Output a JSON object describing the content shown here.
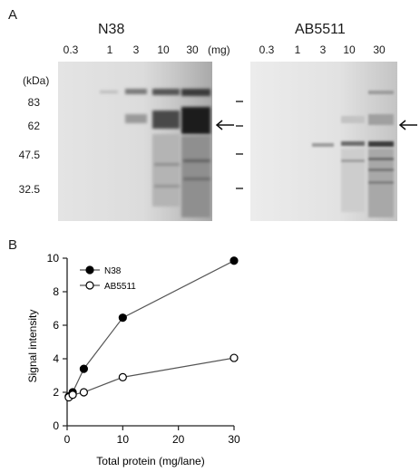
{
  "panel_a": {
    "letter": "A",
    "blots": [
      {
        "title": "N38",
        "lanes": [
          "0.3",
          "1",
          "3",
          "10",
          "30"
        ],
        "unit": "(mg)"
      },
      {
        "title": "AB5511",
        "lanes": [
          "0.3",
          "1",
          "3",
          "10",
          "30"
        ]
      }
    ],
    "mw_header": "(kDa)",
    "mw_markers": [
      "83",
      "62",
      "47.5",
      "32.5"
    ],
    "arrow_glyph": "←"
  },
  "panel_b": {
    "letter": "B"
  },
  "chart_data": {
    "type": "line",
    "xlabel": "Total protein (mg/lane)",
    "ylabel": "Signal intensity",
    "xlim": [
      0,
      30
    ],
    "ylim": [
      0,
      10
    ],
    "xticks": [
      "0",
      "10",
      "20",
      "30"
    ],
    "yticks": [
      "0",
      "2",
      "4",
      "6",
      "8",
      "10"
    ],
    "legend_position": "top-left",
    "series": [
      {
        "name": "N38",
        "marker": "filled-circle",
        "color": "#000000",
        "x": [
          0.3,
          1,
          3,
          10,
          30
        ],
        "y": [
          1.75,
          2.0,
          3.4,
          6.45,
          9.85
        ]
      },
      {
        "name": "AB5511",
        "marker": "open-circle",
        "color": "#000000",
        "x": [
          0.3,
          1,
          3,
          10,
          30
        ],
        "y": [
          1.7,
          1.85,
          2.0,
          2.9,
          4.05
        ]
      }
    ]
  }
}
